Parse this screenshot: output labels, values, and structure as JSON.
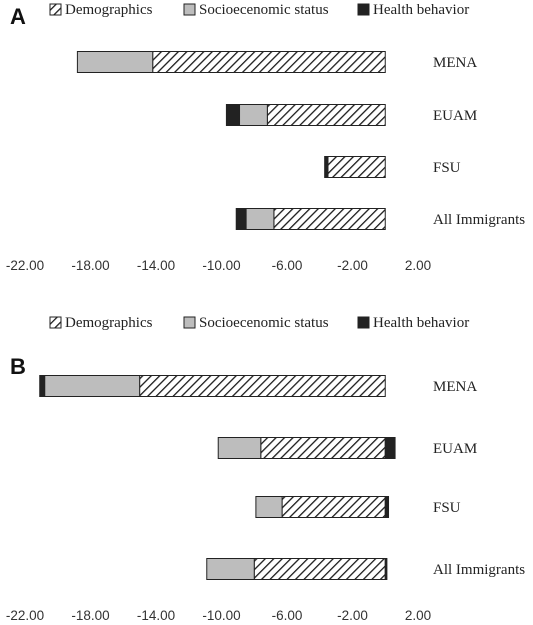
{
  "chart_data": [
    {
      "type": "bar",
      "stacked": true,
      "orientation": "horizontal",
      "panel_label": "A",
      "categories": [
        "MENA",
        "EUAM",
        "FSU",
        "All Immigrants"
      ],
      "series": [
        {
          "name": "Demographics",
          "values": [
            -14.2,
            -7.2,
            -3.5,
            -6.8
          ]
        },
        {
          "name": "Socioecenomic status",
          "values": [
            -4.6,
            -1.7,
            0.0,
            -1.7
          ]
        },
        {
          "name": "Health behavior",
          "values": [
            0.0,
            -0.8,
            -0.2,
            -0.6
          ]
        }
      ],
      "x_ticks": [
        "-22.00",
        "-18.00",
        "-14.00",
        "-10.00",
        "-6.00",
        "-2.00",
        "2.00"
      ],
      "xlim": [
        -22,
        2
      ],
      "legend_position": "top",
      "grid": false,
      "colors": {
        "Demographics": "#ffffff",
        "Socioecenomic status": "#bdbdbd",
        "Health behavior": "#222222"
      },
      "fills": {
        "Demographics": "hatched",
        "Socioecenomic status": "solid",
        "Health behavior": "solid"
      }
    },
    {
      "type": "bar",
      "stacked": true,
      "orientation": "horizontal",
      "panel_label": "B",
      "categories": [
        "MENA",
        "EUAM",
        "FSU",
        "All Immigrants"
      ],
      "series": [
        {
          "name": "Demographics",
          "values": [
            -15.0,
            -7.6,
            -6.3,
            -8.0
          ]
        },
        {
          "name": "Socioecenomic status",
          "values": [
            -5.8,
            -2.6,
            -1.6,
            -2.9
          ]
        },
        {
          "name": "Health behavior",
          "values": [
            -0.3,
            0.6,
            0.2,
            0.1
          ]
        }
      ],
      "x_ticks": [
        "-22.00",
        "-18.00",
        "-14.00",
        "-10.00",
        "-6.00",
        "-2.00",
        "2.00"
      ],
      "xlim": [
        -22,
        2
      ],
      "legend_position": "top",
      "grid": false,
      "colors": {
        "Demographics": "#ffffff",
        "Socioecenomic status": "#bdbdbd",
        "Health behavior": "#222222"
      },
      "fills": {
        "Demographics": "hatched",
        "Socioecenomic status": "solid",
        "Health behavior": "solid"
      }
    }
  ]
}
